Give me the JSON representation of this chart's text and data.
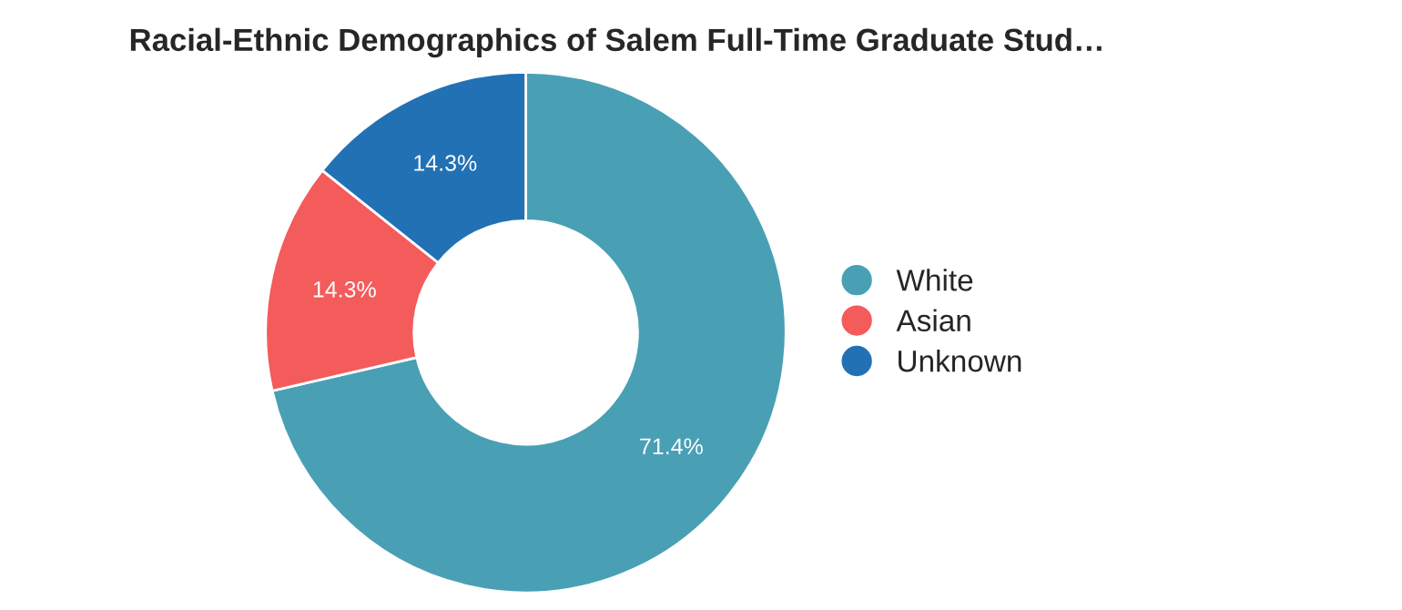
{
  "chart_data": {
    "type": "donut",
    "title": "Racial-Ethnic Demographics of Salem Full-Time Graduate Stud…",
    "categories": [
      "White",
      "Asian",
      "Unknown"
    ],
    "values": [
      71.4,
      14.3,
      14.3
    ],
    "value_labels": [
      "71.4%",
      "14.3%",
      "14.3%"
    ],
    "colors": [
      "#49a0b5",
      "#f45b5b",
      "#2271b5"
    ],
    "legend": "right"
  }
}
